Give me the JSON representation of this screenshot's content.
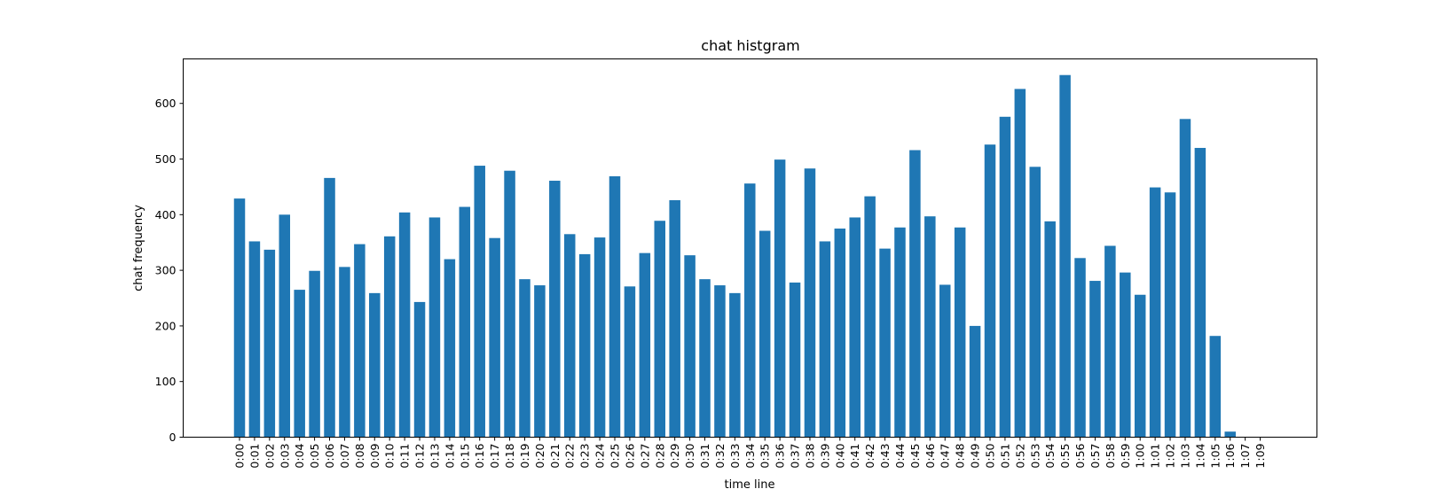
{
  "chart_data": {
    "type": "bar",
    "title": "chat histgram",
    "xlabel": "time line",
    "ylabel": "chat frequency",
    "ylim": [
      0,
      680
    ],
    "yticks": [
      0,
      100,
      200,
      300,
      400,
      500,
      600
    ],
    "grid": false,
    "color": "#1f77b4",
    "categories": [
      "0:00",
      "0:01",
      "0:02",
      "0:03",
      "0:04",
      "0:05",
      "0:06",
      "0:07",
      "0:08",
      "0:09",
      "0:10",
      "0:11",
      "0:12",
      "0:13",
      "0:14",
      "0:15",
      "0:16",
      "0:17",
      "0:18",
      "0:19",
      "0:20",
      "0:21",
      "0:22",
      "0:23",
      "0:24",
      "0:25",
      "0:26",
      "0:27",
      "0:28",
      "0:29",
      "0:30",
      "0:31",
      "0:32",
      "0:33",
      "0:34",
      "0:35",
      "0:36",
      "0:37",
      "0:38",
      "0:39",
      "0:40",
      "0:41",
      "0:42",
      "0:43",
      "0:44",
      "0:45",
      "0:46",
      "0:47",
      "0:48",
      "0:49",
      "0:50",
      "0:51",
      "0:52",
      "0:53",
      "0:54",
      "0:55",
      "0:56",
      "0:57",
      "0:58",
      "0:59",
      "1:00",
      "1:01",
      "1:02",
      "1:03",
      "1:04",
      "1:05",
      "1:06",
      "1:07",
      "1:09"
    ],
    "values": [
      429,
      352,
      337,
      400,
      265,
      299,
      466,
      306,
      347,
      259,
      361,
      404,
      243,
      395,
      320,
      414,
      488,
      358,
      479,
      284,
      273,
      461,
      365,
      329,
      359,
      469,
      271,
      331,
      389,
      426,
      327,
      284,
      273,
      259,
      456,
      371,
      499,
      278,
      483,
      352,
      375,
      395,
      433,
      339,
      377,
      516,
      397,
      274,
      377,
      200,
      526,
      576,
      626,
      486,
      388,
      651,
      322,
      281,
      344,
      296,
      256,
      449,
      440,
      572,
      520,
      182,
      10,
      0,
      0
    ]
  }
}
